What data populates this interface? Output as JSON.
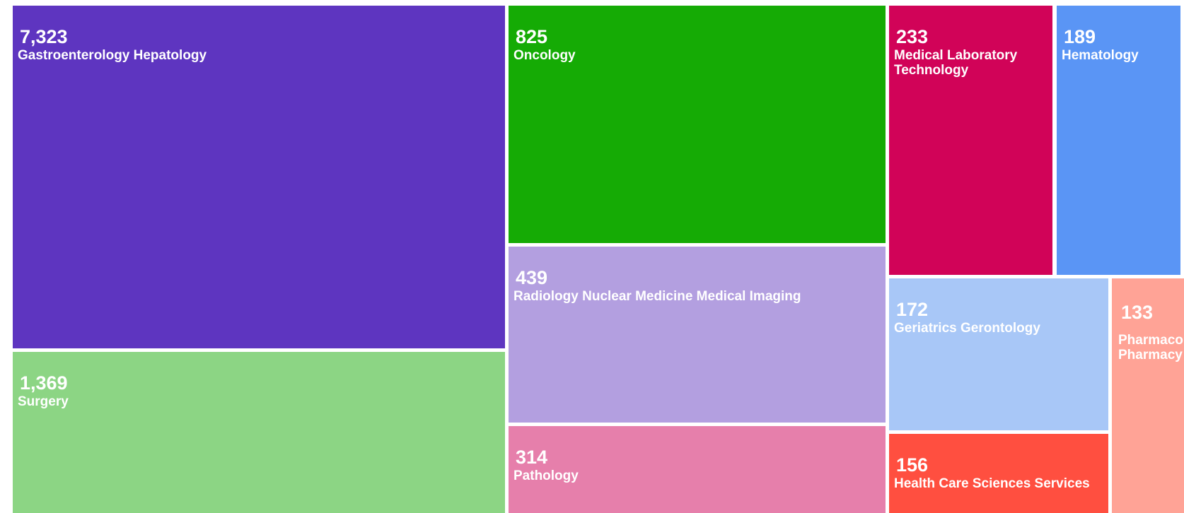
{
  "chart_data": {
    "type": "treemap",
    "items": [
      {
        "label": "Gastroenterology Hepatology",
        "value": 7323,
        "display": "7,323",
        "color": "#5e35c0"
      },
      {
        "label": "Surgery",
        "value": 1369,
        "display": "1,369",
        "color": "#8cd584"
      },
      {
        "label": "Oncology",
        "value": 825,
        "display": "825",
        "color": "#15ab05"
      },
      {
        "label": "Radiology Nuclear Medicine Medical Imaging",
        "value": 439,
        "display": "439",
        "color": "#b39fe0"
      },
      {
        "label": "Pathology",
        "value": 314,
        "display": "314",
        "color": "#e67fab"
      },
      {
        "label": "Medical Laboratory\nTechnology",
        "value": 233,
        "display": "233",
        "color": "#d10358"
      },
      {
        "label": "Hematology",
        "value": 189,
        "display": "189",
        "color": "#5a95f5"
      },
      {
        "label": "Geriatrics Gerontology",
        "value": 172,
        "display": "172",
        "color": "#a8c7f7"
      },
      {
        "label": "Health Care Sciences Services",
        "value": 156,
        "display": "156",
        "color": "#ff4f40"
      },
      {
        "label": "Pharmacology\nPharmacy",
        "value": 133,
        "display": "133",
        "color": "#ffa396"
      }
    ]
  }
}
